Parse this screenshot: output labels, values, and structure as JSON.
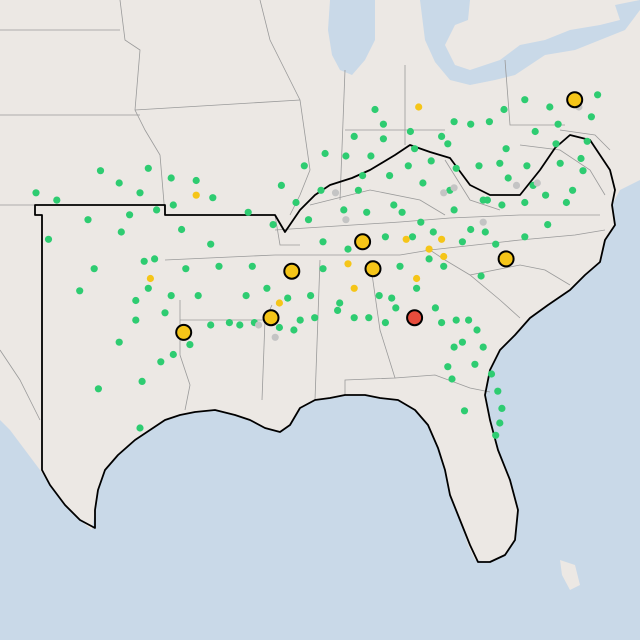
{
  "map": {
    "colors": {
      "water": "#c9d9e8",
      "land": "#ece8e4",
      "state_border": "#9a9a9a",
      "region_border": "#000000",
      "marker_green": "#2ecc71",
      "marker_yellow": "#f5c518",
      "marker_gray": "#c4c4c4",
      "marker_red": "#e74c3c",
      "marker_outline": "#000000"
    },
    "large_markers": [
      {
        "lon": -76.6,
        "lat": 39.3,
        "status": "yellow"
      },
      {
        "lon": -95.4,
        "lat": 29.8,
        "status": "yellow"
      },
      {
        "lon": -91.2,
        "lat": 30.4,
        "status": "yellow"
      },
      {
        "lon": -90.2,
        "lat": 32.3,
        "status": "yellow"
      },
      {
        "lon": -86.8,
        "lat": 33.5,
        "status": "yellow"
      },
      {
        "lon": -86.3,
        "lat": 32.4,
        "status": "yellow"
      },
      {
        "lon": -79.9,
        "lat": 32.8,
        "status": "yellow"
      },
      {
        "lon": -84.3,
        "lat": 30.4,
        "status": "red"
      }
    ],
    "small_markers": {
      "green": [
        [
          -97.5,
          35.5
        ],
        [
          -96.0,
          36.1
        ],
        [
          -98.5,
          35.9
        ],
        [
          -97.1,
          36.5
        ],
        [
          -95.9,
          35.0
        ],
        [
          -99.4,
          36.4
        ],
        [
          -94.8,
          36.0
        ],
        [
          -98.0,
          34.6
        ],
        [
          -96.8,
          32.8
        ],
        [
          -97.3,
          32.7
        ],
        [
          -95.3,
          32.4
        ],
        [
          -94.1,
          33.4
        ],
        [
          -97.7,
          31.1
        ],
        [
          -96.3,
          30.6
        ],
        [
          -98.4,
          33.9
        ],
        [
          -99.7,
          32.4
        ],
        [
          -101.9,
          33.6
        ],
        [
          -100.4,
          31.5
        ],
        [
          -98.5,
          29.4
        ],
        [
          -97.7,
          30.3
        ],
        [
          -97.4,
          27.8
        ],
        [
          -97.5,
          25.9
        ],
        [
          -99.5,
          27.5
        ],
        [
          -95.1,
          29.3
        ],
        [
          -94.1,
          30.1
        ],
        [
          -93.2,
          30.2
        ],
        [
          -92.0,
          30.2
        ],
        [
          -90.1,
          29.9
        ],
        [
          -89.1,
          30.4
        ],
        [
          -88.0,
          30.7
        ],
        [
          -87.2,
          30.4
        ],
        [
          -86.5,
          30.4
        ],
        [
          -85.7,
          30.2
        ],
        [
          -84.3,
          30.5
        ],
        [
          -83.3,
          30.8
        ],
        [
          -82.3,
          30.3
        ],
        [
          -81.7,
          30.3
        ],
        [
          -81.4,
          28.5
        ],
        [
          -82.5,
          27.9
        ],
        [
          -81.9,
          26.6
        ],
        [
          -80.2,
          26.1
        ],
        [
          -80.4,
          25.6
        ],
        [
          -82.4,
          29.2
        ],
        [
          -81.0,
          29.2
        ],
        [
          -81.1,
          32.1
        ],
        [
          -82.0,
          33.5
        ],
        [
          -83.6,
          32.8
        ],
        [
          -84.4,
          33.7
        ],
        [
          -85.0,
          32.5
        ],
        [
          -83.4,
          33.9
        ],
        [
          -84.9,
          34.7
        ],
        [
          -84.0,
          34.3
        ],
        [
          -85.3,
          35.0
        ],
        [
          -86.8,
          36.2
        ],
        [
          -83.9,
          35.9
        ],
        [
          -82.6,
          35.6
        ],
        [
          -81.0,
          35.2
        ],
        [
          -80.8,
          35.2
        ],
        [
          -79.8,
          36.1
        ],
        [
          -78.6,
          35.8
        ],
        [
          -77.9,
          34.2
        ],
        [
          -77.0,
          35.1
        ],
        [
          -76.3,
          36.9
        ],
        [
          -77.5,
          37.5
        ],
        [
          -79.9,
          37.3
        ],
        [
          -78.5,
          38.0
        ],
        [
          -77.4,
          38.3
        ],
        [
          -80.7,
          38.4
        ],
        [
          -81.6,
          38.3
        ],
        [
          -82.4,
          38.4
        ],
        [
          -84.5,
          38.0
        ],
        [
          -85.8,
          38.3
        ],
        [
          -87.6,
          37.0
        ],
        [
          -86.4,
          37.0
        ],
        [
          -88.6,
          37.1
        ],
        [
          -89.6,
          36.6
        ],
        [
          -90.0,
          35.1
        ],
        [
          -88.8,
          35.6
        ],
        [
          -87.0,
          35.6
        ],
        [
          -85.5,
          36.2
        ],
        [
          -89.4,
          34.4
        ],
        [
          -88.7,
          33.5
        ],
        [
          -88.7,
          32.4
        ],
        [
          -89.3,
          31.3
        ],
        [
          -90.4,
          31.2
        ],
        [
          -91.4,
          31.6
        ],
        [
          -92.4,
          31.3
        ],
        [
          -93.7,
          32.5
        ],
        [
          -92.1,
          32.5
        ],
        [
          -94.0,
          35.3
        ],
        [
          -92.3,
          34.7
        ],
        [
          -91.1,
          34.2
        ],
        [
          -90.7,
          35.8
        ],
        [
          -87.7,
          34.8
        ],
        [
          -86.6,
          34.7
        ],
        [
          -85.7,
          33.7
        ],
        [
          -87.5,
          33.2
        ],
        [
          -86.0,
          31.3
        ],
        [
          -85.4,
          31.2
        ],
        [
          -84.2,
          31.6
        ],
        [
          -82.9,
          32.5
        ],
        [
          -80.9,
          33.9
        ],
        [
          -79.0,
          33.7
        ],
        [
          -80.4,
          33.4
        ],
        [
          -82.4,
          34.8
        ],
        [
          -81.6,
          34.0
        ],
        [
          -80.1,
          35.0
        ],
        [
          -79.0,
          35.1
        ],
        [
          -78.0,
          35.4
        ],
        [
          -76.7,
          35.6
        ],
        [
          -76.2,
          36.4
        ],
        [
          -77.3,
          36.7
        ],
        [
          -78.9,
          36.6
        ],
        [
          -80.2,
          36.7
        ],
        [
          -81.2,
          36.6
        ],
        [
          -82.3,
          36.5
        ],
        [
          -83.5,
          36.8
        ],
        [
          -84.6,
          36.6
        ],
        [
          -85.8,
          37.7
        ],
        [
          -83.0,
          37.8
        ],
        [
          -84.3,
          37.3
        ],
        [
          -87.2,
          37.8
        ],
        [
          -86.2,
          38.9
        ],
        [
          -82.7,
          37.5
        ],
        [
          -80.0,
          38.9
        ],
        [
          -79.0,
          39.3
        ],
        [
          -77.8,
          39.0
        ],
        [
          -75.5,
          39.5
        ],
        [
          -75.8,
          38.6
        ],
        [
          -76.0,
          37.6
        ],
        [
          -80.3,
          27.4
        ],
        [
          -80.6,
          28.1
        ],
        [
          -81.3,
          29.9
        ],
        [
          -82.0,
          29.4
        ],
        [
          -82.7,
          28.4
        ],
        [
          -80.1,
          26.7
        ],
        [
          -83.0,
          30.2
        ],
        [
          -85.2,
          30.8
        ],
        [
          -87.9,
          31.0
        ],
        [
          -90.8,
          30.0
        ],
        [
          -89.8,
          30.3
        ],
        [
          -92.7,
          30.1
        ],
        [
          -95.9,
          28.9
        ],
        [
          -96.5,
          28.6
        ],
        [
          -100.0,
          34.4
        ],
        [
          -101.5,
          35.2
        ],
        [
          -102.5,
          35.5
        ],
        [
          -96.7,
          34.8
        ],
        [
          -95.5,
          34.0
        ],
        [
          -97.1,
          31.6
        ],
        [
          -96.0,
          31.3
        ],
        [
          -94.7,
          31.3
        ]
      ],
      "yellow": [
        [
          -84.1,
          39.0
        ],
        [
          -97.0,
          32.0
        ],
        [
          -94.8,
          35.4
        ],
        [
          -87.5,
          32.6
        ],
        [
          -84.7,
          33.6
        ],
        [
          -83.6,
          33.2
        ],
        [
          -82.9,
          32.9
        ],
        [
          -86.1,
          32.3
        ],
        [
          -90.8,
          31.0
        ],
        [
          -87.2,
          31.6
        ],
        [
          -84.2,
          32.0
        ],
        [
          -83.0,
          33.6
        ]
      ],
      "gray": [
        [
          -88.1,
          35.5
        ],
        [
          -82.9,
          35.5
        ],
        [
          -82.4,
          35.7
        ],
        [
          -79.4,
          35.8
        ],
        [
          -78.4,
          35.9
        ],
        [
          -76.4,
          39.0
        ],
        [
          -91.8,
          30.1
        ],
        [
          -91.0,
          29.6
        ],
        [
          -87.6,
          34.4
        ],
        [
          -81.0,
          34.3
        ]
      ]
    }
  }
}
